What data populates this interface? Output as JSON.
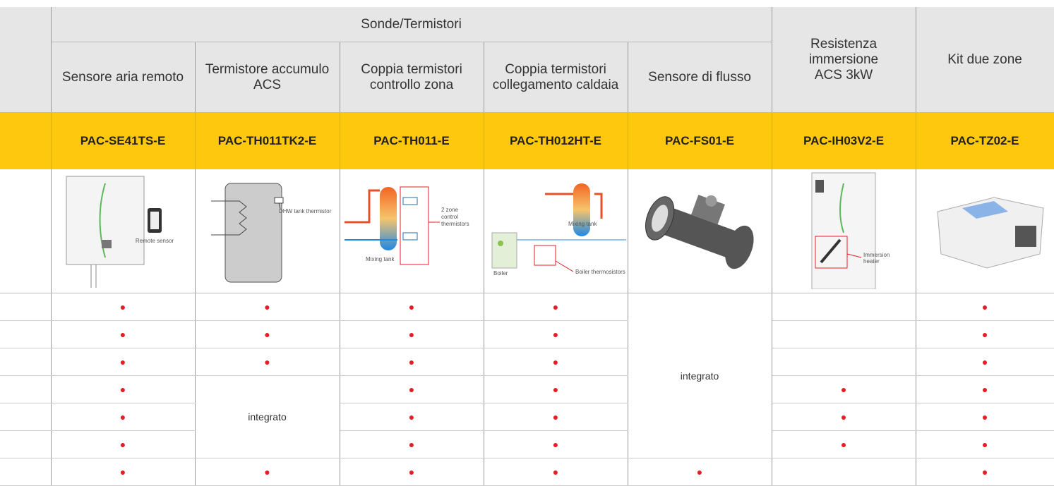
{
  "header": {
    "group": "Sonde/Termistori",
    "columns": [
      "Sensore aria remoto",
      "Termistore accumulo ACS",
      "Coppia termistori controllo zona",
      "Coppia termistori collegamento caldaia",
      "Sensore di flusso",
      "Resistenza immersione ACS 3kW",
      "Kit due zone"
    ]
  },
  "codes": [
    "PAC-SE41TS-E",
    "PAC-TH011TK2-E",
    "PAC-TH011-E",
    "PAC-TH012HT-E",
    "PAC-FS01-E",
    "PAC-IH03V2-E",
    "PAC-TZ02-E"
  ],
  "images": [
    {
      "labels": [
        "Remote sensor"
      ]
    },
    {
      "labels": [
        "DHW tank thermistor"
      ]
    },
    {
      "labels": [
        "2 zone",
        "control",
        "thermistors",
        "Mixing tank"
      ]
    },
    {
      "labels": [
        "Mixing tank",
        "Boiler",
        "Boiler thermosistors"
      ]
    },
    {
      "labels": []
    },
    {
      "labels": [
        "Immersion",
        "heater"
      ]
    },
    {
      "labels": []
    }
  ],
  "rows": [
    [
      "●",
      "●",
      "●",
      "●",
      "integrato",
      null,
      "●"
    ],
    [
      "●",
      "●",
      "●",
      "●",
      null,
      "●"
    ],
    [
      "●",
      "●",
      "●",
      "●",
      null,
      "●"
    ],
    [
      "●",
      "integrato",
      "●",
      "●",
      "●",
      "●"
    ],
    [
      "●",
      "●",
      "●",
      "●",
      "●"
    ],
    [
      "●",
      "●",
      "●",
      "●",
      "●"
    ],
    [
      "●",
      "●",
      "●",
      "●",
      "●",
      null,
      "●"
    ]
  ]
}
